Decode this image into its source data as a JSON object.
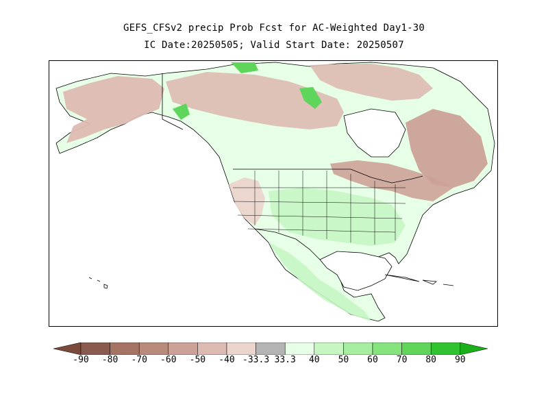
{
  "title": "GEFS_CFSv2 precip Prob Fcst for AC-Weighted Day1-30",
  "subtitle": "IC Date:20250505; Valid Start Date: 20250507",
  "colorbar": {
    "ticks": [
      "-90",
      "-80",
      "-70",
      "-60",
      "-50",
      "-40",
      "-33.3",
      "33.3",
      "40",
      "50",
      "60",
      "70",
      "80",
      "90"
    ],
    "below_colors": [
      "#8b5a4e",
      "#a57465",
      "#b98b7c",
      "#cca298",
      "#ddbbb2",
      "#ecd5cd"
    ],
    "neutral_color": "#b4b4b4",
    "above_colors": [
      "#e6ffe6",
      "#c7f6c3",
      "#a7eea2",
      "#86e47f",
      "#5fd65b",
      "#2fc42f"
    ],
    "below_arrow_color": "#7a4a3c",
    "above_arrow_color": "#1ab01a"
  },
  "map": {
    "ocean_color": "#ffffff",
    "land_default_color": "#e6ffe6",
    "region_categories": {
      "alaska": "below_40_50",
      "northern_canada": "below_40_50",
      "hudson_east": "below_50_60",
      "arctic_islands": "below_40_50",
      "great_lakes_quebec": "below_50_60",
      "western_us": "below_33_40",
      "yukon_bc_green": "above_70_80",
      "nunavut_green": "above_70_80",
      "central_us": "above_40_50",
      "mexico": "above_40_50"
    }
  }
}
